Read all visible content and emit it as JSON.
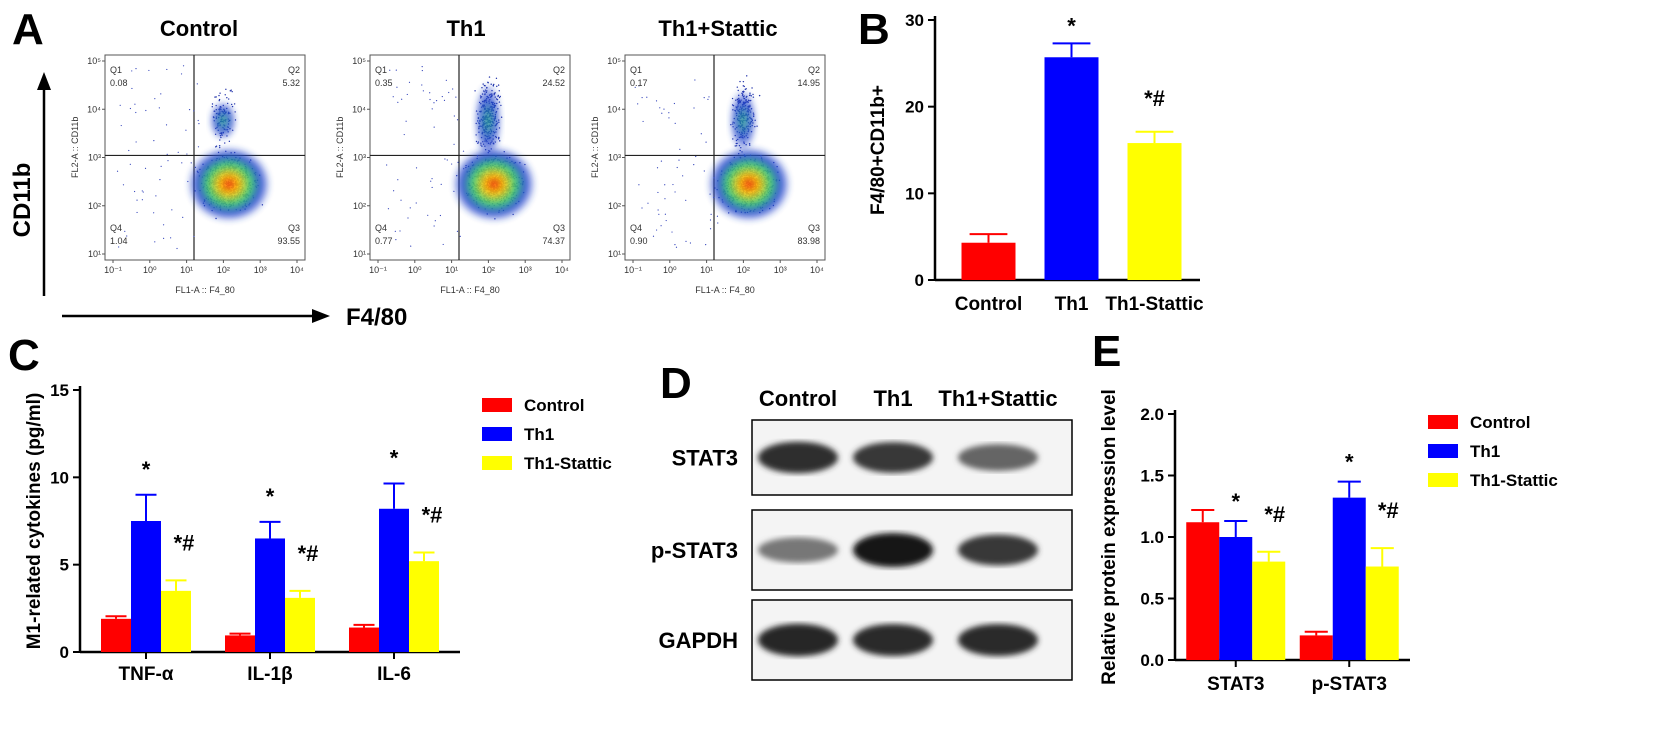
{
  "colors": {
    "control": "#ff0000",
    "th1": "#0000ff",
    "stattic": "#ffff00",
    "axis": "#000000"
  },
  "panel_labels": [
    "A",
    "B",
    "C",
    "D",
    "E"
  ],
  "panel_a": {
    "titles": [
      "Control",
      "Th1",
      "Th1+Stattic"
    ],
    "y_axis_label": "CD11b",
    "x_axis_label": "F4/80",
    "plot_xlabel": "FL1-A :: F4_80",
    "plot_ylabel": "FL2-A :: CD11b",
    "quadrant_names": [
      "Q1",
      "Q2",
      "Q3",
      "Q4"
    ],
    "x_ticks": [
      "10⁻¹",
      "10⁰",
      "10¹",
      "10²",
      "10³",
      "10⁴"
    ],
    "y_ticks": [
      "10⁵",
      "10⁴",
      "10³",
      "10²",
      "10¹"
    ],
    "plots": [
      {
        "q1": "0.08",
        "q2": "5.32",
        "q3": "93.55",
        "q4": "1.04"
      },
      {
        "q1": "0.35",
        "q2": "24.52",
        "q3": "74.37",
        "q4": "0.77"
      },
      {
        "q1": "0.17",
        "q2": "14.95",
        "q3": "83.98",
        "q4": "0.90"
      }
    ]
  },
  "chart_data": [
    {
      "panel": "B",
      "type": "bar",
      "categories": [
        "Control",
        "Th1",
        "Th1-Stattic"
      ],
      "values": [
        4.3,
        25.7,
        15.8
      ],
      "errors": [
        1.0,
        1.6,
        1.3
      ],
      "annotations": [
        "",
        "*",
        "*#"
      ],
      "ylabel": "F4/80+CD11b+",
      "ylim": [
        0,
        30
      ],
      "yticks": [
        0,
        10,
        20,
        30
      ]
    },
    {
      "panel": "C",
      "type": "bar",
      "categories": [
        "TNF-α",
        "IL-1β",
        "IL-6"
      ],
      "series": [
        {
          "name": "Control",
          "values": [
            1.9,
            0.95,
            1.4
          ],
          "errors": [
            0.15,
            0.1,
            0.15
          ],
          "annotations": [
            "",
            "",
            ""
          ]
        },
        {
          "name": "Th1",
          "values": [
            7.5,
            6.5,
            8.2
          ],
          "errors": [
            1.5,
            0.95,
            1.45
          ],
          "annotations": [
            "*",
            "*",
            "*"
          ]
        },
        {
          "name": "Th1-Stattic",
          "values": [
            3.5,
            3.1,
            5.2
          ],
          "errors": [
            0.6,
            0.4,
            0.5
          ],
          "annotations": [
            "*#",
            "*#",
            "*#"
          ]
        }
      ],
      "ylabel": "M1-related cytokines  (pg/ml)",
      "ylim": [
        0,
        15
      ],
      "yticks": [
        0,
        5,
        10,
        15
      ]
    },
    {
      "panel": "E",
      "type": "bar",
      "categories": [
        "STAT3",
        "p-STAT3"
      ],
      "series": [
        {
          "name": "Control",
          "values": [
            1.12,
            0.2
          ],
          "errors": [
            0.1,
            0.03
          ],
          "annotations": [
            "",
            ""
          ]
        },
        {
          "name": "Th1",
          "values": [
            1.0,
            1.32
          ],
          "errors": [
            0.13,
            0.13
          ],
          "annotations": [
            "*",
            "*"
          ]
        },
        {
          "name": "Th1-Stattic",
          "values": [
            0.8,
            0.76
          ],
          "errors": [
            0.08,
            0.15
          ],
          "annotations": [
            "*#",
            "*#"
          ]
        }
      ],
      "ylabel": "Relative protein expression level",
      "ylim": [
        0,
        2.0
      ],
      "yticks": [
        "0.0",
        "0.5",
        "1.0",
        "1.5",
        "2.0"
      ]
    }
  ],
  "panel_d": {
    "lane_labels": [
      "Control",
      "Th1",
      "Th1+Stattic"
    ],
    "rows": [
      {
        "label": "STAT3",
        "intensities": [
          0.85,
          0.8,
          0.55
        ]
      },
      {
        "label": "p-STAT3",
        "intensities": [
          0.45,
          1.0,
          0.8
        ]
      },
      {
        "label": "GAPDH",
        "intensities": [
          0.9,
          0.88,
          0.88
        ]
      }
    ]
  }
}
